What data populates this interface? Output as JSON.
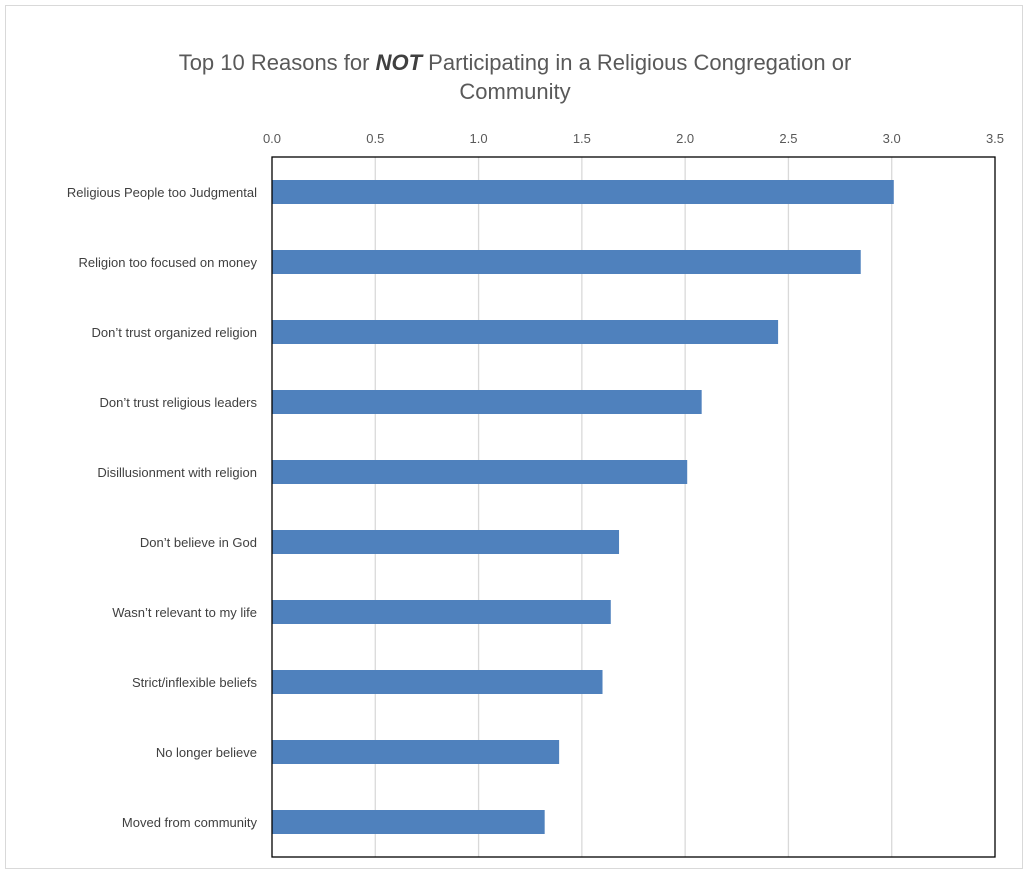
{
  "chart_data": {
    "type": "bar",
    "orientation": "horizontal",
    "title_parts": [
      "Top 10 Reasons for ",
      "NOT",
      " Participating in a Religious Congregation or",
      "Community"
    ],
    "categories": [
      "Religious People too Judgmental",
      "Religion too focused on money",
      "Don’t trust organized religion",
      "Don’t trust religious leaders",
      "Disillusionment with religion",
      "Don’t believe in God",
      "Wasn’t relevant to my life",
      "Strict/inflexible beliefs",
      "No longer believe",
      "Moved from community"
    ],
    "values": [
      3.01,
      2.85,
      2.45,
      2.08,
      2.01,
      1.68,
      1.64,
      1.6,
      1.39,
      1.32
    ],
    "xlim": [
      0,
      3.5
    ],
    "xticks": [
      "0.0",
      "0.5",
      "1.0",
      "1.5",
      "2.0",
      "2.5",
      "3.0",
      "3.5"
    ],
    "axis_position": "top",
    "grid": true,
    "legend": "none",
    "bar_color": "#4f81bd",
    "grid_color": "#d9d9d9"
  }
}
